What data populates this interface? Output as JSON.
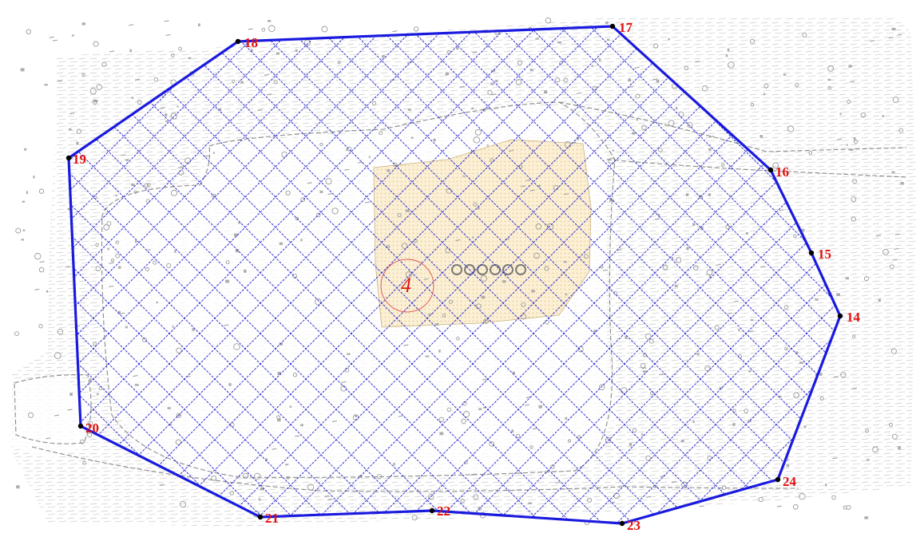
{
  "map": {
    "colors": {
      "boundary": "#1a1adf",
      "hatch": "#2a2ad0",
      "label": "#e01010",
      "vertex": "#000000",
      "terrain": "#c8c8c8",
      "terrain_dark": "#9a9a9a",
      "building_fill": "#fbefd2",
      "road": "#888888",
      "marker_circle": "#e05050"
    },
    "hatch_pattern": "diagonal-crosshatch",
    "center_label": "4",
    "vertices": [
      {
        "id": "14",
        "label": "14"
      },
      {
        "id": "15",
        "label": "15"
      },
      {
        "id": "16",
        "label": "16"
      },
      {
        "id": "17",
        "label": "17"
      },
      {
        "id": "18",
        "label": "18"
      },
      {
        "id": "19",
        "label": "19"
      },
      {
        "id": "20",
        "label": "20"
      },
      {
        "id": "21",
        "label": "21"
      },
      {
        "id": "22",
        "label": "22"
      },
      {
        "id": "23",
        "label": "23"
      },
      {
        "id": "24",
        "label": "24"
      }
    ]
  }
}
